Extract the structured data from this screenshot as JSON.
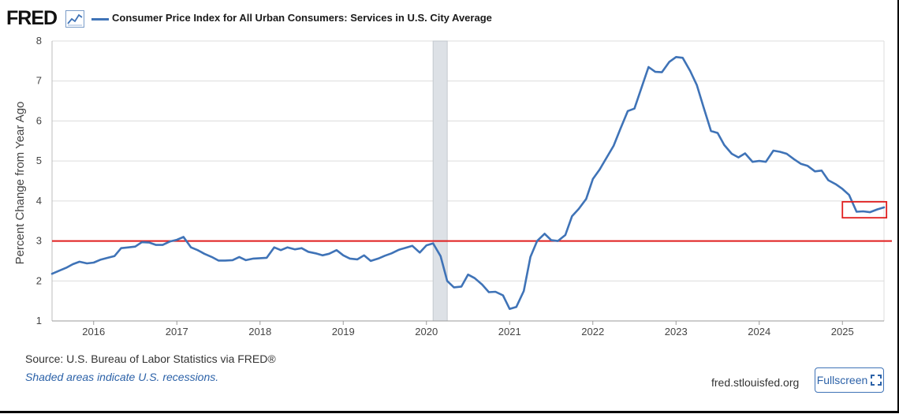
{
  "header": {
    "logo_text": "FRED",
    "logo_icon": "line-graph-icon",
    "series_title": "Consumer Price Index for All Urban Consumers: Services in U.S. City Average"
  },
  "footer": {
    "source": "Source: U.S. Bureau of Labor Statistics via FRED®",
    "recession_note": "Shaded areas indicate U.S. recessions.",
    "site": "fred.stlouisfed.org",
    "fullscreen_label": "Fullscreen",
    "fullscreen_icon": "expand-icon"
  },
  "colors": {
    "series": "#3f73b7",
    "reference_line": "#e01e1e",
    "highlight_box": "#e01e1e",
    "recession_shade": "#dde1e6",
    "grid": "#dcdcdc"
  },
  "chart_data": {
    "type": "line",
    "title": "Consumer Price Index for All Urban Consumers: Services in U.S. City Average",
    "xlabel": "",
    "ylabel": "Percent Change from Year Ago",
    "xlim": [
      2015.5,
      2025.5
    ],
    "ylim": [
      1,
      8
    ],
    "yticks": [
      "1",
      "2",
      "3",
      "4",
      "5",
      "6",
      "7",
      "8"
    ],
    "xticks": [
      "2016",
      "2017",
      "2018",
      "2019",
      "2020",
      "2021",
      "2022",
      "2023",
      "2024",
      "2025"
    ],
    "grid": true,
    "legend": "top-left",
    "recession_shading": [
      [
        2020.08,
        2020.25
      ]
    ],
    "reference_line_y": 3.0,
    "highlight_box": {
      "x": [
        2025.0,
        2025.53
      ],
      "y": [
        3.58,
        3.98
      ]
    },
    "series": [
      {
        "name": "Consumer Price Index for All Urban Consumers: Services in U.S. City Average",
        "x": [
          2015.5,
          2015.58,
          2015.67,
          2015.75,
          2015.83,
          2015.92,
          2016.0,
          2016.08,
          2016.17,
          2016.25,
          2016.33,
          2016.42,
          2016.5,
          2016.58,
          2016.67,
          2016.75,
          2016.83,
          2016.92,
          2017.0,
          2017.08,
          2017.17,
          2017.25,
          2017.33,
          2017.42,
          2017.5,
          2017.58,
          2017.67,
          2017.75,
          2017.83,
          2017.92,
          2018.0,
          2018.08,
          2018.17,
          2018.25,
          2018.33,
          2018.42,
          2018.5,
          2018.58,
          2018.67,
          2018.75,
          2018.83,
          2018.92,
          2019.0,
          2019.08,
          2019.17,
          2019.25,
          2019.33,
          2019.42,
          2019.5,
          2019.58,
          2019.67,
          2019.75,
          2019.83,
          2019.92,
          2020.0,
          2020.08,
          2020.17,
          2020.25,
          2020.33,
          2020.42,
          2020.5,
          2020.58,
          2020.67,
          2020.75,
          2020.83,
          2020.92,
          2021.0,
          2021.08,
          2021.17,
          2021.25,
          2021.33,
          2021.42,
          2021.5,
          2021.58,
          2021.67,
          2021.75,
          2021.83,
          2021.92,
          2022.0,
          2022.08,
          2022.17,
          2022.25,
          2022.33,
          2022.42,
          2022.5,
          2022.58,
          2022.67,
          2022.75,
          2022.83,
          2022.92,
          2023.0,
          2023.08,
          2023.17,
          2023.25,
          2023.33,
          2023.42,
          2023.5,
          2023.58,
          2023.67,
          2023.75,
          2023.83,
          2023.92,
          2024.0,
          2024.08,
          2024.17,
          2024.25,
          2024.33,
          2024.42,
          2024.5,
          2024.58,
          2024.67,
          2024.75,
          2024.83,
          2024.92,
          2025.0,
          2025.08,
          2025.17,
          2025.25,
          2025.33,
          2025.42,
          2025.5
        ],
        "values": [
          2.18,
          2.25,
          2.33,
          2.42,
          2.48,
          2.44,
          2.46,
          2.53,
          2.58,
          2.62,
          2.82,
          2.84,
          2.86,
          2.97,
          2.96,
          2.9,
          2.9,
          2.99,
          3.03,
          3.1,
          2.84,
          2.77,
          2.68,
          2.6,
          2.51,
          2.51,
          2.52,
          2.6,
          2.52,
          2.56,
          2.57,
          2.58,
          2.84,
          2.77,
          2.84,
          2.79,
          2.82,
          2.73,
          2.69,
          2.64,
          2.68,
          2.77,
          2.64,
          2.56,
          2.54,
          2.64,
          2.5,
          2.56,
          2.63,
          2.69,
          2.78,
          2.83,
          2.88,
          2.71,
          2.89,
          2.94,
          2.62,
          2.0,
          1.84,
          1.86,
          2.16,
          2.07,
          1.91,
          1.72,
          1.73,
          1.64,
          1.3,
          1.35,
          1.75,
          2.6,
          3.0,
          3.18,
          3.02,
          3.0,
          3.15,
          3.62,
          3.8,
          4.05,
          4.55,
          4.78,
          5.1,
          5.38,
          5.8,
          6.25,
          6.31,
          6.8,
          7.35,
          7.23,
          7.22,
          7.48,
          7.6,
          7.58,
          7.25,
          6.9,
          6.35,
          5.75,
          5.7,
          5.4,
          5.18,
          5.09,
          5.19,
          4.98,
          5.0,
          4.98,
          5.26,
          5.23,
          5.18,
          5.04,
          4.93,
          4.88,
          4.74,
          4.76,
          4.52,
          4.42,
          4.3,
          4.15,
          3.73,
          3.74,
          3.72,
          3.79,
          3.84
        ]
      }
    ]
  }
}
